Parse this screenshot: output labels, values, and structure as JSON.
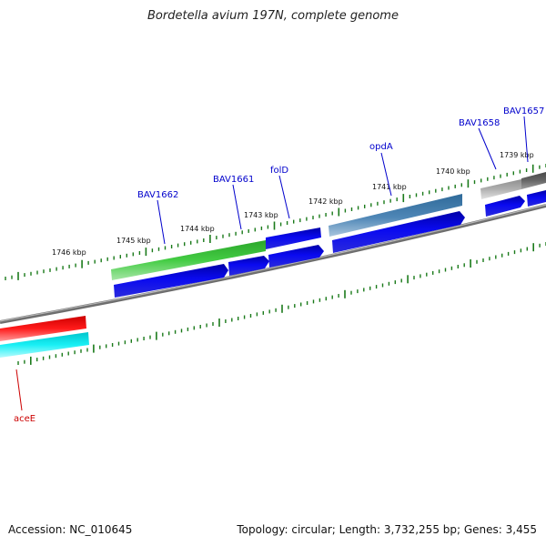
{
  "header": {
    "title": "Bordetella avium 197N, complete genome"
  },
  "footer": {
    "accession": "Accession: NC_010645",
    "summary": "Topology: circular; Length: 3,732,255 bp; Genes: 3,455"
  },
  "scale": {
    "ticks": [
      {
        "id": "1746",
        "label": "1746 kbp"
      },
      {
        "id": "1745",
        "label": "1745 kbp"
      },
      {
        "id": "1744",
        "label": "1744 kbp"
      },
      {
        "id": "1743",
        "label": "1743 kbp"
      },
      {
        "id": "1742",
        "label": "1742 kbp"
      },
      {
        "id": "1741",
        "label": "1741 kbp"
      },
      {
        "id": "1740",
        "label": "1740 kbp"
      },
      {
        "id": "1739",
        "label": "1739 kbp"
      }
    ]
  },
  "genes": [
    {
      "id": "bav1662",
      "label": "BAV1662",
      "color": "#0000cc"
    },
    {
      "id": "bav1661",
      "label": "BAV1661",
      "color": "#0000cc"
    },
    {
      "id": "fold",
      "label": "folD",
      "color": "#0000cc"
    },
    {
      "id": "opda",
      "label": "opdA",
      "color": "#0000cc"
    },
    {
      "id": "bav1658",
      "label": "BAV1658",
      "color": "#0000cc"
    },
    {
      "id": "bav1657",
      "label": "BAV1657",
      "color": "#0000cc"
    },
    {
      "id": "acee",
      "label": "aceE",
      "color": "#cc0000"
    }
  ],
  "colors": {
    "backbone": "#808080",
    "cds": "#0000dd",
    "tick": "#1a7a1a",
    "green_feature": "#33bb33",
    "steel_feature": "#4a7fad",
    "gray_feature": "#a8a8a8",
    "dark_feature": "#606060",
    "red_feature": "#ee1111",
    "cyan_feature": "#00e5ee"
  }
}
